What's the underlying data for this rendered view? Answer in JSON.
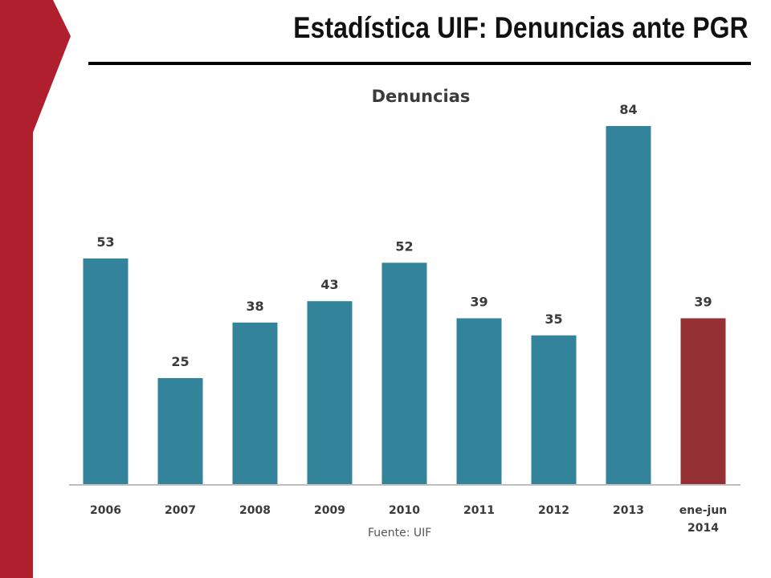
{
  "slide": {
    "title": "Estadística UIF: Denuncias ante PGR",
    "accent_color": "#b01f2e"
  },
  "chart_data": {
    "type": "bar",
    "title": "Denuncias",
    "categories": [
      "2006",
      "2007",
      "2008",
      "2009",
      "2010",
      "2011",
      "2012",
      "2013",
      "ene-jun 2014"
    ],
    "values": [
      53,
      25,
      38,
      43,
      52,
      39,
      35,
      84,
      39
    ],
    "data_labels": [
      "53",
      "25",
      "38",
      "43",
      "52",
      "39",
      "35",
      "84",
      "39"
    ],
    "colors": [
      "#33849b",
      "#33849b",
      "#33849b",
      "#33849b",
      "#33849b",
      "#33849b",
      "#33849b",
      "#33849b",
      "#943033"
    ],
    "xlabel": "",
    "ylabel": "",
    "ylim": [
      0,
      84
    ],
    "grid": false,
    "legend": "none",
    "source": "Fuente: UIF"
  }
}
